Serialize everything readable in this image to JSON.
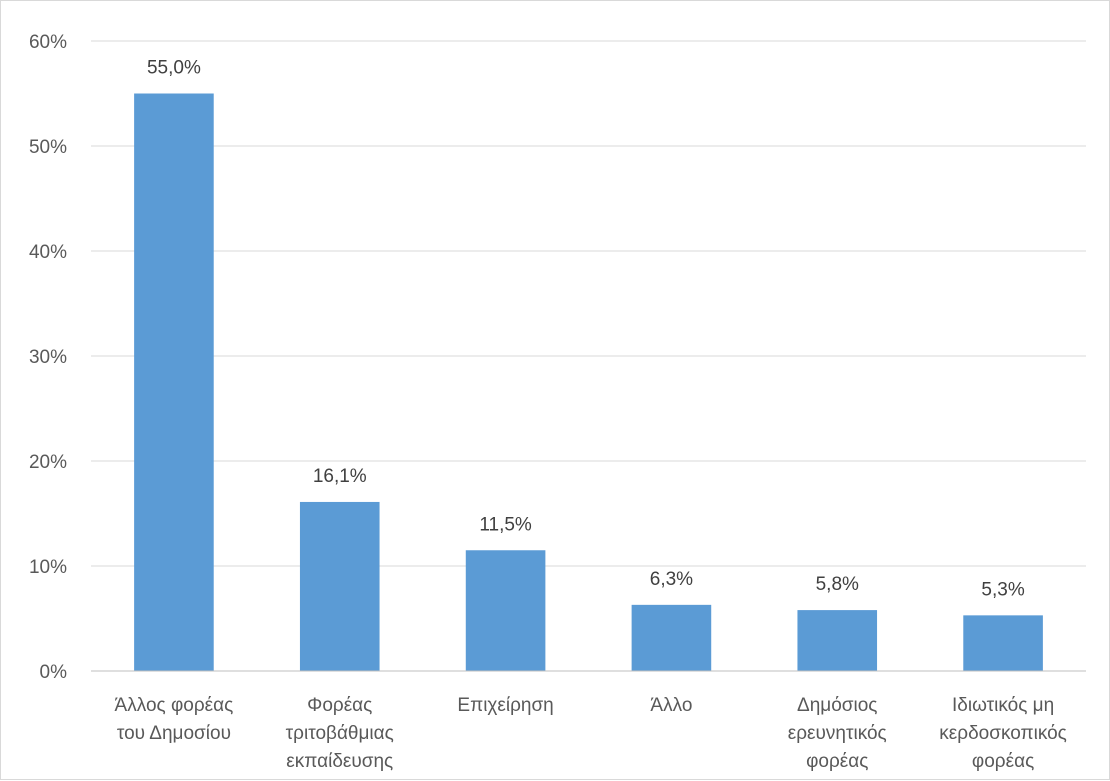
{
  "chart_data": {
    "type": "bar",
    "title": "",
    "xlabel": "",
    "ylabel": "",
    "categories": [
      [
        "Άλλος φορέας",
        "του Δημοσίου"
      ],
      [
        "Φορέας",
        "τριτοβάθμιας",
        "εκπαίδευσης"
      ],
      [
        "Επιχείρηση"
      ],
      [
        "Άλλο"
      ],
      [
        "Δημόσιος",
        "ερευνητικός",
        "φορέας"
      ],
      [
        "Ιδιωτικός μη",
        "κερδοσκοπικός",
        "φορέας"
      ]
    ],
    "values": [
      55.0,
      16.1,
      11.5,
      6.3,
      5.8,
      5.3
    ],
    "value_labels": [
      "55,0%",
      "16,1%",
      "11,5%",
      "6,3%",
      "5,8%",
      "5,3%"
    ],
    "ylim": [
      0,
      60
    ],
    "yticks": [
      0,
      10,
      20,
      30,
      40,
      50,
      60
    ],
    "ytick_labels": [
      "0%",
      "10%",
      "20%",
      "30%",
      "40%",
      "50%",
      "60%"
    ],
    "grid": true,
    "legend": "none",
    "colors": {
      "bar": "#5b9bd5",
      "grid": "#d9d9d9",
      "axis": "#bfbfbf"
    }
  }
}
